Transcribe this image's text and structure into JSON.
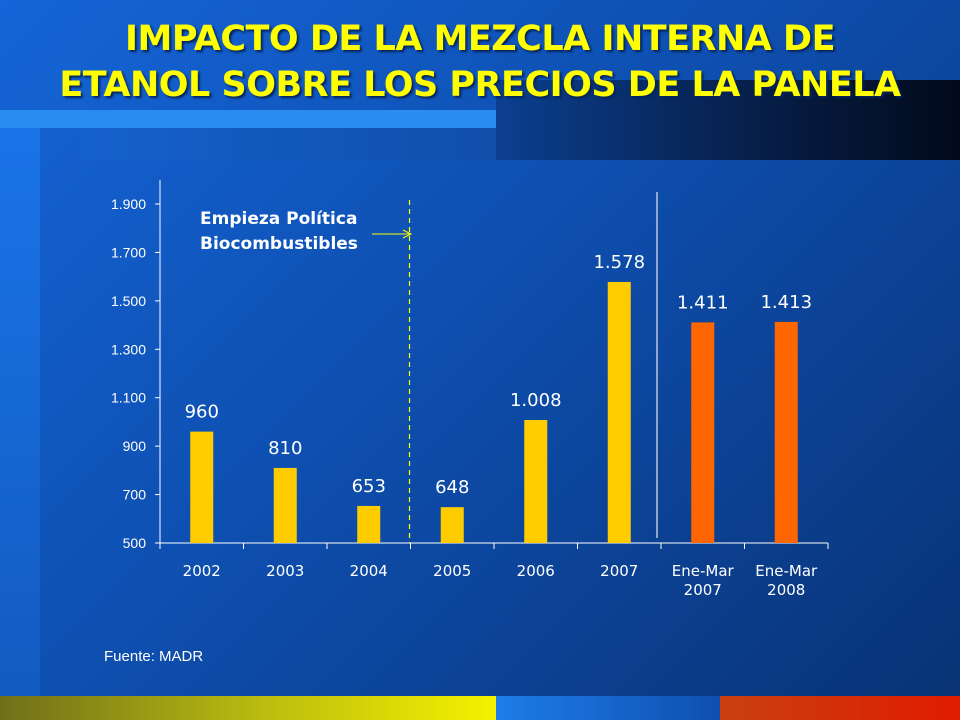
{
  "slide": {
    "title_line1": "IMPACTO DE LA MEZCLA INTERNA DE",
    "title_line2": "ETANOL SOBRE LOS PRECIOS DE LA PANELA",
    "source": "Fuente: MADR"
  },
  "colors": {
    "bar_annual": "#ffcc00",
    "bar_partial": "#ff6600",
    "annotation": "#ffff00",
    "axis": "#ffffff"
  },
  "chart_data": {
    "type": "bar",
    "categories": [
      [
        "2002"
      ],
      [
        "2003"
      ],
      [
        "2004"
      ],
      [
        "2005"
      ],
      [
        "2006"
      ],
      [
        "2007"
      ],
      [
        "Ene-Mar",
        "2007"
      ],
      [
        "Ene-Mar",
        "2008"
      ]
    ],
    "values": [
      960,
      810,
      653,
      648,
      1008,
      1578,
      1411,
      1413
    ],
    "value_labels": [
      "960",
      "810",
      "653",
      "648",
      "1.008",
      "1.578",
      "1.411",
      "1.413"
    ],
    "bar_colors": [
      "#ffcc00",
      "#ffcc00",
      "#ffcc00",
      "#ffcc00",
      "#ffcc00",
      "#ffcc00",
      "#ff6600",
      "#ff6600"
    ],
    "ylim": [
      500,
      1900
    ],
    "yticks": [
      500,
      700,
      900,
      1100,
      1300,
      1500,
      1700,
      1900
    ],
    "ytick_labels": [
      "500",
      "700",
      "900",
      "1.100",
      "1.300",
      "1.500",
      "1.700",
      "1.900"
    ],
    "title": "",
    "xlabel": "",
    "ylabel": "",
    "grid": false,
    "annotation": {
      "text_line1": "Empieza Política",
      "text_line2": "Biocombustibles",
      "marker_after_index": 2
    },
    "separator_after_index": 5
  }
}
